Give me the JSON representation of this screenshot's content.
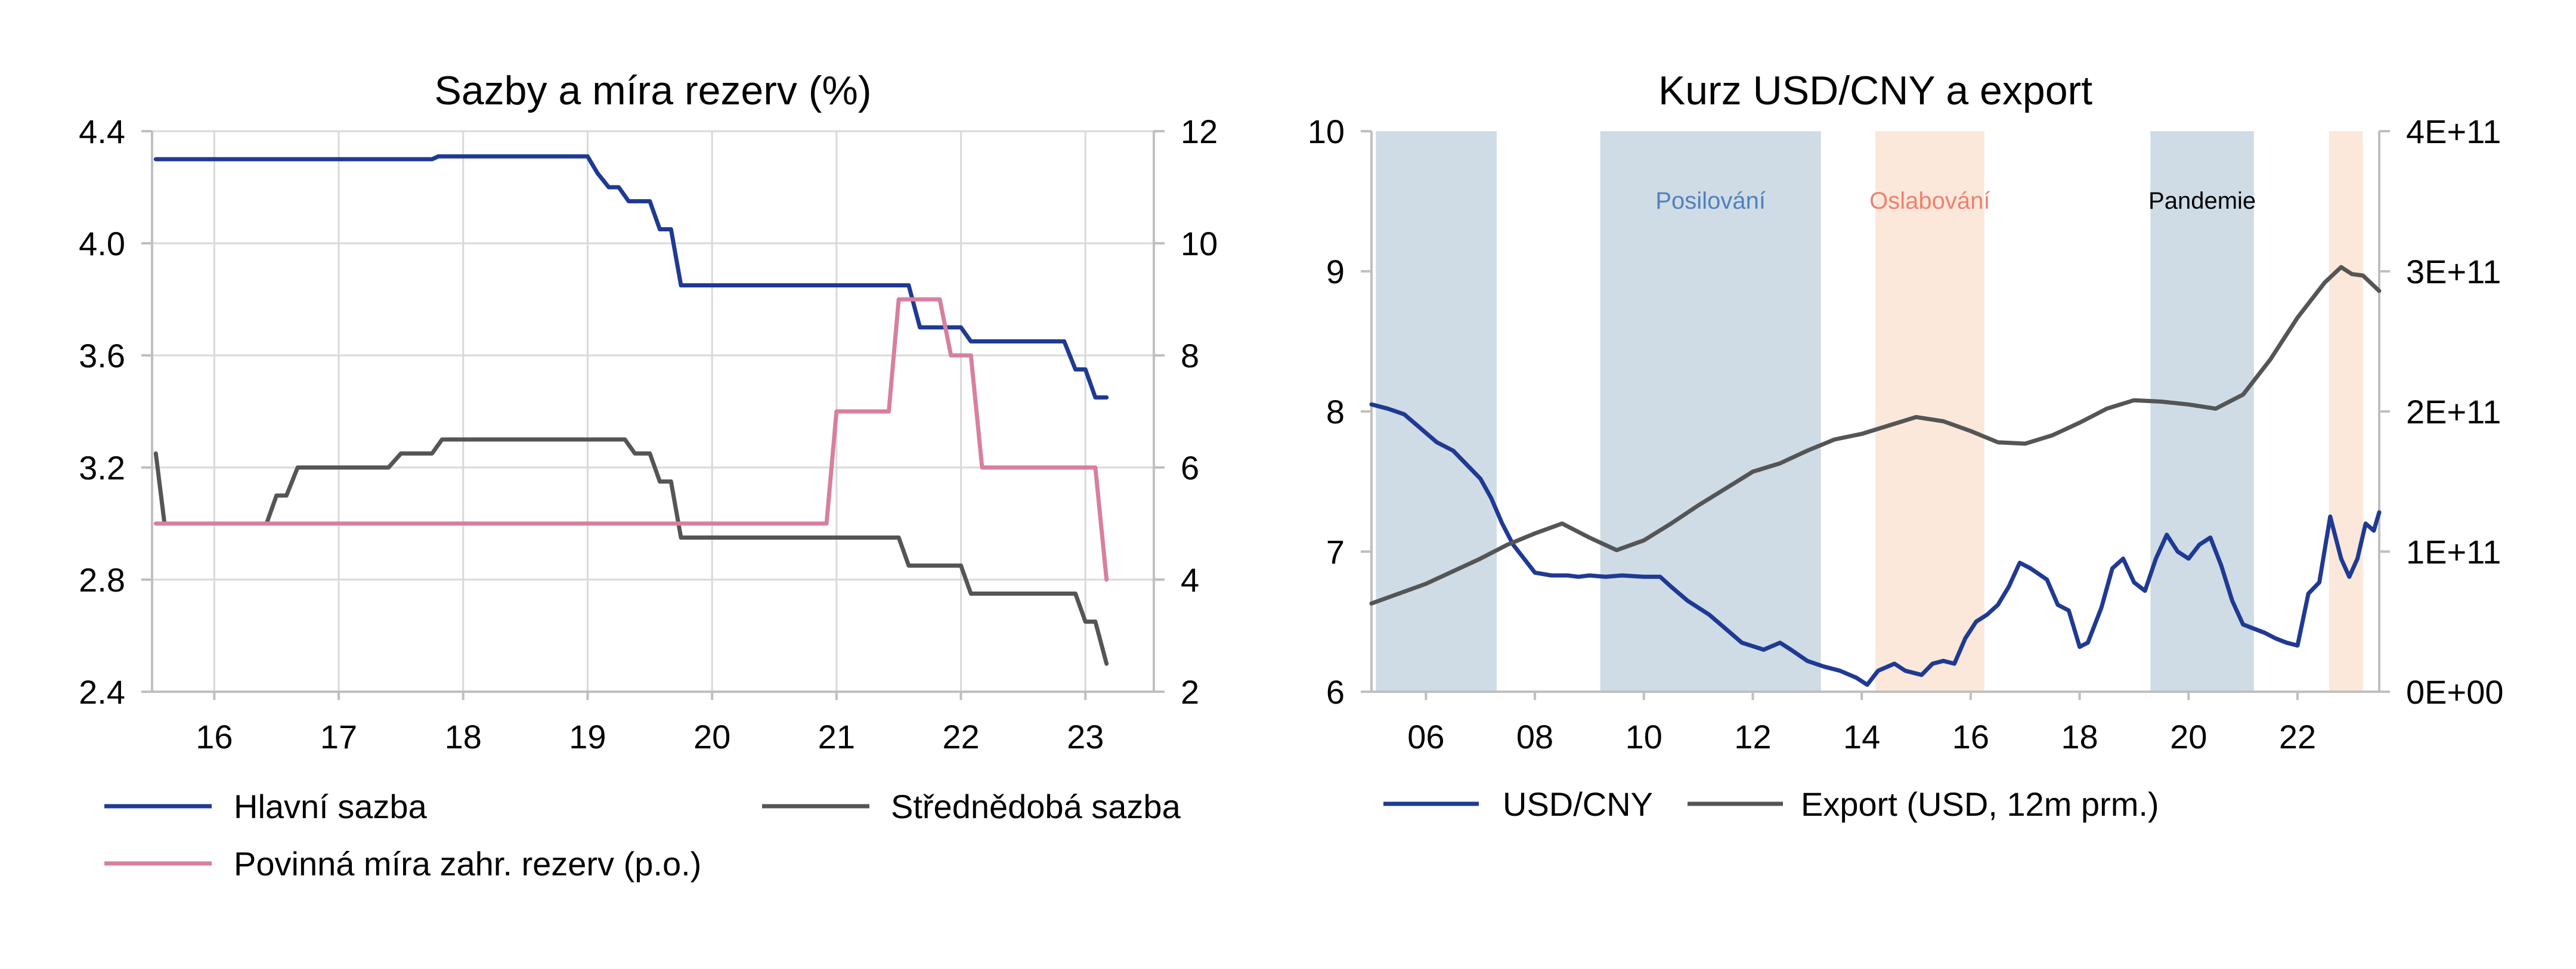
{
  "charts": [
    {
      "title": "Sazby a míra rezerv (%)",
      "legend": [
        "Hlavní sazba",
        "Střednědobá sazba",
        "Povinná míra zahr. rezerv (p.o.)"
      ]
    },
    {
      "title": "Kurz USD/CNY a export",
      "legend": [
        "USD/CNY",
        "Export (USD, 12m prm.)"
      ]
    }
  ],
  "chart_data": [
    {
      "type": "line",
      "title": "Sazby a míra rezerv (%)",
      "xlabel": "",
      "ylabel": "",
      "x_range": [
        2015.5,
        2023.55
      ],
      "x_ticks": [
        2016,
        2017,
        2018,
        2019,
        2020,
        2021,
        2022,
        2023
      ],
      "x_tick_labels": [
        "16",
        "17",
        "18",
        "19",
        "20",
        "21",
        "22",
        "23"
      ],
      "ylim": [
        2.4,
        4.4
      ],
      "y_ticks": [
        2.4,
        2.8,
        3.2,
        3.6,
        4.0,
        4.4
      ],
      "y_tick_labels": [
        "2.4",
        "2.8",
        "3.2",
        "3.6",
        "4.0",
        "4.4"
      ],
      "y2lim": [
        2,
        12
      ],
      "y2_ticks": [
        2,
        4,
        6,
        8,
        10,
        12
      ],
      "y2_tick_labels": [
        "2",
        "4",
        "6",
        "8",
        "10",
        "12"
      ],
      "grid": true,
      "legend_position": "bottom",
      "series": [
        {
          "name": "Hlavní sazba",
          "axis": "left",
          "color": "#1f3a93",
          "points": [
            [
              2015.53,
              4.3
            ],
            [
              2017.75,
              4.3
            ],
            [
              2017.8,
              4.31
            ],
            [
              2019.0,
              4.31
            ],
            [
              2019.08,
              4.25
            ],
            [
              2019.17,
              4.2
            ],
            [
              2019.25,
              4.2
            ],
            [
              2019.33,
              4.15
            ],
            [
              2019.5,
              4.15
            ],
            [
              2019.58,
              4.05
            ],
            [
              2019.67,
              4.05
            ],
            [
              2019.75,
              3.85
            ],
            [
              2021.42,
              3.85
            ],
            [
              2021.58,
              3.85
            ],
            [
              2021.67,
              3.7
            ],
            [
              2022.0,
              3.7
            ],
            [
              2022.08,
              3.65
            ],
            [
              2022.83,
              3.65
            ],
            [
              2022.92,
              3.55
            ],
            [
              2023.0,
              3.55
            ],
            [
              2023.08,
              3.45
            ],
            [
              2023.17,
              3.45
            ]
          ]
        },
        {
          "name": "Střednědobá sazba",
          "axis": "left",
          "color": "#555555",
          "points": [
            [
              2015.53,
              3.25
            ],
            [
              2015.6,
              3.0
            ],
            [
              2016.42,
              3.0
            ],
            [
              2016.5,
              3.1
            ],
            [
              2016.58,
              3.1
            ],
            [
              2016.67,
              3.2
            ],
            [
              2017.4,
              3.2
            ],
            [
              2017.5,
              3.25
            ],
            [
              2017.75,
              3.25
            ],
            [
              2017.83,
              3.3
            ],
            [
              2019.3,
              3.3
            ],
            [
              2019.38,
              3.25
            ],
            [
              2019.5,
              3.25
            ],
            [
              2019.58,
              3.15
            ],
            [
              2019.67,
              3.15
            ],
            [
              2019.75,
              2.95
            ],
            [
              2021.5,
              2.95
            ],
            [
              2021.58,
              2.85
            ],
            [
              2022.0,
              2.85
            ],
            [
              2022.08,
              2.75
            ],
            [
              2022.92,
              2.75
            ],
            [
              2023.0,
              2.65
            ],
            [
              2023.08,
              2.65
            ],
            [
              2023.17,
              2.5
            ]
          ]
        },
        {
          "name": "Povinná míra zahr. rezerv (p.o.)",
          "axis": "right",
          "color": "#d87fa0",
          "points": [
            [
              2015.53,
              5
            ],
            [
              2020.92,
              5
            ],
            [
              2021.0,
              7
            ],
            [
              2021.42,
              7
            ],
            [
              2021.5,
              9
            ],
            [
              2021.83,
              9
            ],
            [
              2021.92,
              8
            ],
            [
              2022.08,
              8
            ],
            [
              2022.17,
              6
            ],
            [
              2023.08,
              6
            ],
            [
              2023.17,
              4
            ]
          ]
        }
      ]
    },
    {
      "type": "line",
      "title": "Kurz USD/CNY a export",
      "xlabel": "",
      "ylabel": "",
      "x_range": [
        2005.0,
        2023.5
      ],
      "x_ticks": [
        2006,
        2008,
        2010,
        2012,
        2014,
        2016,
        2018,
        2020,
        2022
      ],
      "x_tick_labels": [
        "06",
        "08",
        "10",
        "12",
        "14",
        "16",
        "18",
        "20",
        "22"
      ],
      "ylim": [
        6,
        10
      ],
      "y_ticks": [
        6,
        7,
        8,
        9,
        10
      ],
      "y_tick_labels": [
        "6",
        "7",
        "8",
        "9",
        "10"
      ],
      "y2lim": [
        0,
        400000000000
      ],
      "y2_ticks": [
        0,
        100000000000,
        200000000000,
        300000000000,
        400000000000
      ],
      "y2_tick_labels": [
        "0E+00",
        "1E+11",
        "2E+11",
        "3E+11",
        "4E+11"
      ],
      "grid": false,
      "legend_position": "bottom",
      "bands": [
        {
          "from": 2005.08,
          "to": 2007.3,
          "color": "#cfdce6",
          "label": ""
        },
        {
          "from": 2009.2,
          "to": 2013.25,
          "color": "#cfdce6",
          "label": "Posilování",
          "label_color": "#4f81bd"
        },
        {
          "from": 2014.25,
          "to": 2016.25,
          "color": "#fbe8da",
          "label": "Oslabování",
          "label_color": "#f08070"
        },
        {
          "from": 2019.3,
          "to": 2021.2,
          "color": "#cfdce6",
          "label": "Pandemie",
          "label_color": "#000000"
        },
        {
          "from": 2022.58,
          "to": 2023.2,
          "color": "#fbe8da",
          "label": ""
        }
      ],
      "series": [
        {
          "name": "USD/CNY",
          "axis": "left",
          "color": "#1f3a93",
          "points": [
            [
              2005.0,
              8.05
            ],
            [
              2005.3,
              8.02
            ],
            [
              2005.6,
              7.98
            ],
            [
              2005.9,
              7.88
            ],
            [
              2006.2,
              7.78
            ],
            [
              2006.5,
              7.72
            ],
            [
              2006.8,
              7.6
            ],
            [
              2007.0,
              7.52
            ],
            [
              2007.2,
              7.38
            ],
            [
              2007.4,
              7.2
            ],
            [
              2007.6,
              7.05
            ],
            [
              2007.8,
              6.95
            ],
            [
              2008.0,
              6.85
            ],
            [
              2008.3,
              6.83
            ],
            [
              2008.6,
              6.83
            ],
            [
              2008.8,
              6.82
            ],
            [
              2009.0,
              6.83
            ],
            [
              2009.3,
              6.82
            ],
            [
              2009.6,
              6.83
            ],
            [
              2010.0,
              6.82
            ],
            [
              2010.3,
              6.82
            ],
            [
              2010.5,
              6.75
            ],
            [
              2010.8,
              6.65
            ],
            [
              2011.2,
              6.55
            ],
            [
              2011.5,
              6.45
            ],
            [
              2011.8,
              6.35
            ],
            [
              2012.2,
              6.3
            ],
            [
              2012.5,
              6.35
            ],
            [
              2012.7,
              6.3
            ],
            [
              2013.0,
              6.22
            ],
            [
              2013.3,
              6.18
            ],
            [
              2013.6,
              6.15
            ],
            [
              2013.9,
              6.1
            ],
            [
              2014.1,
              6.05
            ],
            [
              2014.3,
              6.15
            ],
            [
              2014.6,
              6.2
            ],
            [
              2014.8,
              6.15
            ],
            [
              2015.1,
              6.12
            ],
            [
              2015.3,
              6.2
            ],
            [
              2015.5,
              6.22
            ],
            [
              2015.7,
              6.2
            ],
            [
              2015.9,
              6.38
            ],
            [
              2016.1,
              6.5
            ],
            [
              2016.3,
              6.55
            ],
            [
              2016.5,
              6.62
            ],
            [
              2016.7,
              6.75
            ],
            [
              2016.9,
              6.92
            ],
            [
              2017.1,
              6.88
            ],
            [
              2017.4,
              6.8
            ],
            [
              2017.6,
              6.62
            ],
            [
              2017.8,
              6.58
            ],
            [
              2018.0,
              6.32
            ],
            [
              2018.15,
              6.35
            ],
            [
              2018.4,
              6.6
            ],
            [
              2018.6,
              6.88
            ],
            [
              2018.8,
              6.95
            ],
            [
              2019.0,
              6.78
            ],
            [
              2019.2,
              6.72
            ],
            [
              2019.4,
              6.95
            ],
            [
              2019.6,
              7.12
            ],
            [
              2019.8,
              7.0
            ],
            [
              2020.0,
              6.95
            ],
            [
              2020.2,
              7.05
            ],
            [
              2020.4,
              7.1
            ],
            [
              2020.6,
              6.9
            ],
            [
              2020.8,
              6.65
            ],
            [
              2021.0,
              6.48
            ],
            [
              2021.2,
              6.45
            ],
            [
              2021.4,
              6.42
            ],
            [
              2021.6,
              6.38
            ],
            [
              2021.8,
              6.35
            ],
            [
              2022.0,
              6.33
            ],
            [
              2022.2,
              6.7
            ],
            [
              2022.4,
              6.78
            ],
            [
              2022.6,
              7.25
            ],
            [
              2022.8,
              6.95
            ],
            [
              2022.95,
              6.82
            ],
            [
              2023.1,
              6.95
            ],
            [
              2023.25,
              7.2
            ],
            [
              2023.4,
              7.15
            ],
            [
              2023.5,
              7.28
            ]
          ]
        },
        {
          "name": "Export (USD, 12m prm.)",
          "axis": "right",
          "color": "#555555",
          "points": [
            [
              2005.0,
              63000000000
            ],
            [
              2005.5,
              70000000000
            ],
            [
              2006.0,
              77000000000
            ],
            [
              2006.5,
              86000000000
            ],
            [
              2007.0,
              95000000000
            ],
            [
              2007.5,
              105000000000
            ],
            [
              2008.0,
              113000000000
            ],
            [
              2008.5,
              120000000000
            ],
            [
              2009.0,
              110000000000
            ],
            [
              2009.5,
              101000000000
            ],
            [
              2010.0,
              108000000000
            ],
            [
              2010.5,
              120000000000
            ],
            [
              2011.0,
              133000000000
            ],
            [
              2011.5,
              145000000000
            ],
            [
              2012.0,
              157000000000
            ],
            [
              2012.5,
              163000000000
            ],
            [
              2013.0,
              172000000000
            ],
            [
              2013.5,
              180000000000
            ],
            [
              2014.0,
              184000000000
            ],
            [
              2014.5,
              190000000000
            ],
            [
              2015.0,
              196000000000
            ],
            [
              2015.5,
              193000000000
            ],
            [
              2016.0,
              186000000000
            ],
            [
              2016.5,
              178000000000
            ],
            [
              2017.0,
              177000000000
            ],
            [
              2017.5,
              183000000000
            ],
            [
              2018.0,
              192000000000
            ],
            [
              2018.5,
              202000000000
            ],
            [
              2019.0,
              208000000000
            ],
            [
              2019.5,
              207000000000
            ],
            [
              2020.0,
              205000000000
            ],
            [
              2020.5,
              202000000000
            ],
            [
              2021.0,
              212000000000
            ],
            [
              2021.5,
              237000000000
            ],
            [
              2022.0,
              267000000000
            ],
            [
              2022.5,
              292000000000
            ],
            [
              2022.8,
              303000000000
            ],
            [
              2023.0,
              298000000000
            ],
            [
              2023.2,
              297000000000
            ],
            [
              2023.5,
              286000000000
            ]
          ]
        }
      ]
    }
  ]
}
